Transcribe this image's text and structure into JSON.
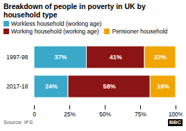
{
  "chart_data": {
    "type": "bar",
    "title": "Breakdown of people in poverty in UK by household type",
    "orientation": "horizontal",
    "stacked": true,
    "data_labels": true,
    "grid": false,
    "categories": [
      "1997-98",
      "2017-18"
    ],
    "series": [
      {
        "name": "Workless household (working age)",
        "color": "#3aa8c8",
        "values": [
          37,
          24
        ],
        "value_labels": [
          "37%",
          "24%"
        ]
      },
      {
        "name": "Working household (working age)",
        "color": "#8b1414",
        "values": [
          41,
          58
        ],
        "value_labels": [
          "41%",
          "58%"
        ]
      },
      {
        "name": "Pensioner household",
        "color": "#f0a500",
        "values": [
          22,
          18
        ],
        "value_labels": [
          "22%",
          "18%"
        ]
      }
    ],
    "xlim": [
      0,
      100
    ],
    "xticks": [
      0,
      {
        "value": 25,
        "label": "25%"
      },
      {
        "value": 50,
        "label": "50%"
      },
      {
        "value": 75,
        "label": "75%"
      },
      {
        "value": 100,
        "label": "100%"
      }
    ],
    "annotations": [
      "Source: IFS",
      "BBC"
    ]
  }
}
